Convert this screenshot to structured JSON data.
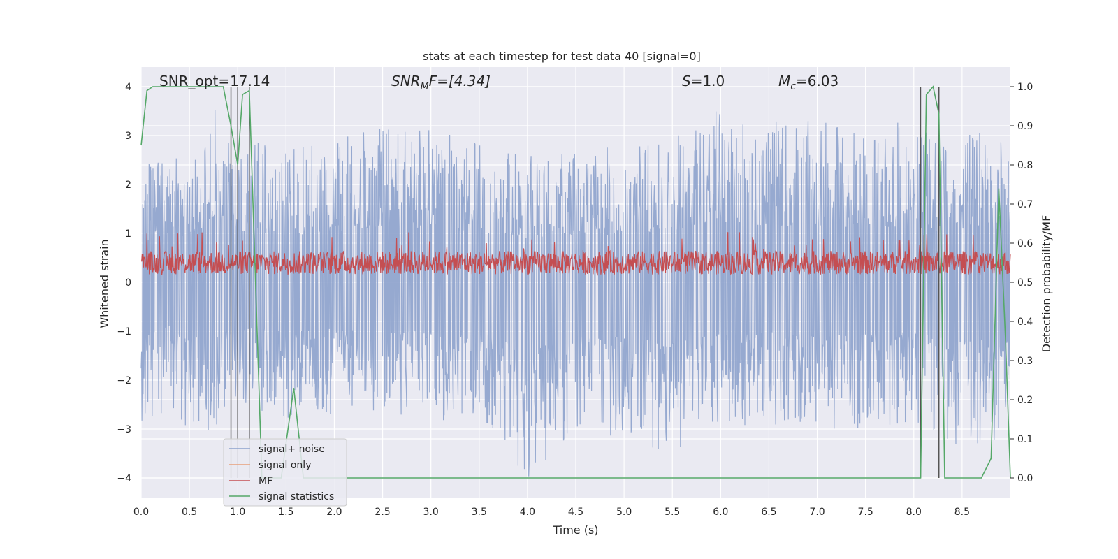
{
  "chart_data": {
    "type": "line",
    "title": "stats at each timestep for test data 40 [signal=0]",
    "xlabel": "Time (s)",
    "ylabel": "Whitened strain",
    "ylabel_right": "Detection probability/MF",
    "xlim": [
      0.0,
      9.0
    ],
    "ylim": [
      -4.4,
      4.4
    ],
    "ylim_right": [
      -0.05,
      1.05
    ],
    "x_ticks": [
      0.0,
      0.5,
      1.0,
      1.5,
      2.0,
      2.5,
      3.0,
      3.5,
      4.0,
      4.5,
      5.0,
      5.5,
      6.0,
      6.5,
      7.0,
      7.5,
      8.0,
      8.5
    ],
    "x_tick_labels": [
      "0.0",
      "0.5",
      "1.0",
      "1.5",
      "2.0",
      "2.5",
      "3.0",
      "3.5",
      "4.0",
      "4.5",
      "5.0",
      "5.5",
      "6.0",
      "6.5",
      "7.0",
      "7.5",
      "8.0",
      "8.5"
    ],
    "y_ticks": [
      -4,
      -3,
      -2,
      -1,
      0,
      1,
      2,
      3,
      4
    ],
    "y_tick_labels": [
      "−4",
      "−3",
      "−2",
      "−1",
      "0",
      "1",
      "2",
      "3",
      "4"
    ],
    "y_ticks_right": [
      0.0,
      0.1,
      0.2,
      0.3,
      0.4,
      0.5,
      0.6,
      0.7,
      0.8,
      0.9,
      1.0
    ],
    "y_tick_labels_right": [
      "0.0",
      "0.1",
      "0.2",
      "0.3",
      "0.4",
      "0.5",
      "0.6",
      "0.7",
      "0.8",
      "0.9",
      "1.0"
    ],
    "grid": true,
    "legend_position": "lower-left",
    "annotations": {
      "snr_opt": "SNR_opt=17.14",
      "snr_mf_main": "SNR",
      "snr_mf_sub": "M",
      "snr_mf_rest": "F=[4.34]",
      "s_label": "S",
      "s_rest": "=1.0",
      "mc_main": "M",
      "mc_sub": "c",
      "mc_rest": "=6.03"
    },
    "vertical_lines_x": [
      0.93,
      1.0,
      1.12,
      8.07,
      8.26
    ],
    "series": [
      {
        "name": "signal+ noise",
        "color": "#8da2cc",
        "axis": "left",
        "note_values": "dense noise, envelope approximately within [-3.3, 3.7]",
        "envelope_top": [
          [
            0.0,
            2.4
          ],
          [
            0.3,
            2.6
          ],
          [
            0.6,
            2.8
          ],
          [
            0.75,
            3.7
          ],
          [
            1.0,
            3.0
          ],
          [
            1.5,
            2.7
          ],
          [
            2.0,
            2.9
          ],
          [
            2.3,
            3.1
          ],
          [
            2.8,
            3.2
          ],
          [
            3.5,
            2.9
          ],
          [
            4.0,
            2.6
          ],
          [
            4.5,
            2.7
          ],
          [
            5.0,
            2.8
          ],
          [
            5.5,
            3.0
          ],
          [
            5.95,
            3.55
          ],
          [
            6.5,
            3.3
          ],
          [
            7.0,
            3.3
          ],
          [
            7.5,
            3.1
          ],
          [
            7.9,
            3.3
          ],
          [
            8.3,
            2.9
          ],
          [
            8.75,
            3.2
          ],
          [
            9.0,
            2.7
          ]
        ],
        "envelope_bottom": [
          [
            0.0,
            -3.2
          ],
          [
            0.3,
            -2.5
          ],
          [
            0.6,
            -3.3
          ],
          [
            1.0,
            -2.6
          ],
          [
            1.5,
            -2.8
          ],
          [
            2.0,
            -2.7
          ],
          [
            2.5,
            -2.6
          ],
          [
            3.0,
            -3.0
          ],
          [
            3.5,
            -2.8
          ],
          [
            4.0,
            -4.0
          ],
          [
            4.5,
            -3.1
          ],
          [
            5.0,
            -3.2
          ],
          [
            5.5,
            -3.5
          ],
          [
            6.0,
            -3.0
          ],
          [
            6.5,
            -2.9
          ],
          [
            7.0,
            -3.0
          ],
          [
            7.5,
            -3.0
          ],
          [
            8.0,
            -2.9
          ],
          [
            8.5,
            -3.4
          ],
          [
            9.0,
            -3.2
          ]
        ]
      },
      {
        "name": "signal only",
        "color": "#e8a07a",
        "axis": "left",
        "x": [],
        "y": []
      },
      {
        "name": "MF",
        "color": "#c44e52",
        "axis": "right",
        "note_values": "dense noisy trace around 0.55 on right axis (approx range 0.5-0.62)",
        "level": 0.55,
        "min": 0.5,
        "max": 0.63
      },
      {
        "name": "signal statistics",
        "color": "#55a868",
        "axis": "right",
        "x": [
          0.0,
          0.06,
          0.12,
          0.5,
          0.85,
          0.93,
          1.0,
          1.05,
          1.12,
          1.25,
          1.45,
          1.58,
          1.68,
          2.0,
          4.0,
          8.07,
          8.13,
          8.2,
          8.26,
          8.32,
          8.7,
          8.8,
          8.88,
          8.95,
          9.0
        ],
        "y": [
          0.85,
          0.99,
          1.0,
          1.0,
          1.0,
          0.9,
          0.8,
          0.98,
          0.99,
          0.0,
          0.0,
          0.23,
          0.0,
          0.0,
          0.0,
          0.0,
          0.98,
          1.0,
          0.93,
          0.0,
          0.0,
          0.05,
          0.74,
          0.35,
          0.0
        ]
      }
    ]
  }
}
